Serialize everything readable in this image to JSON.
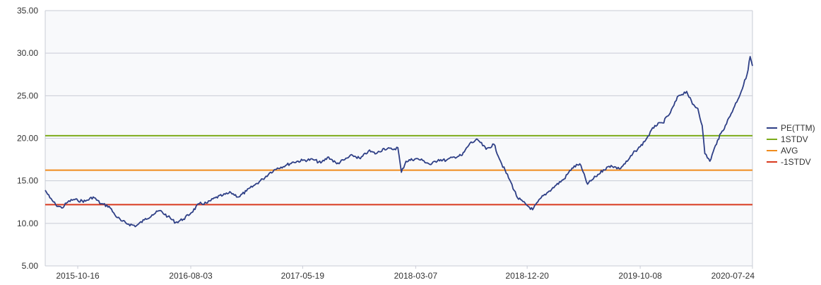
{
  "chart_data": {
    "type": "line",
    "x_tick_labels": [
      "2015-10-16",
      "2016-08-03",
      "2017-05-19",
      "2018-03-07",
      "2018-12-20",
      "2019-10-08",
      "2020-07-24"
    ],
    "x_range": [
      "2015-07-24",
      "2020-07-24"
    ],
    "y_tick_labels": [
      "5.00",
      "10.00",
      "15.00",
      "20.00",
      "25.00",
      "30.00",
      "35.00"
    ],
    "ylim": [
      5,
      35
    ],
    "grid": "horizontal",
    "legend_position": "right",
    "title": "",
    "xlabel": "",
    "ylabel": "",
    "series": [
      {
        "name": "PE(TTM)",
        "color": "#2e3f86",
        "x": [
          "2015-07-24",
          "2015-08-05",
          "2015-08-20",
          "2015-09-05",
          "2015-09-20",
          "2015-10-05",
          "2015-10-16",
          "2015-11-05",
          "2015-11-25",
          "2015-12-15",
          "2016-01-05",
          "2016-01-20",
          "2016-02-05",
          "2016-02-25",
          "2016-03-15",
          "2016-04-05",
          "2016-04-25",
          "2016-05-15",
          "2016-06-05",
          "2016-06-25",
          "2016-07-15",
          "2016-08-03",
          "2016-08-25",
          "2016-09-15",
          "2016-10-05",
          "2016-10-25",
          "2016-11-15",
          "2016-12-05",
          "2016-12-25",
          "2017-01-15",
          "2017-02-05",
          "2017-02-25",
          "2017-03-15",
          "2017-04-05",
          "2017-04-25",
          "2017-05-19",
          "2017-06-15",
          "2017-07-05",
          "2017-07-25",
          "2017-08-15",
          "2017-09-05",
          "2017-09-25",
          "2017-10-15",
          "2017-11-05",
          "2017-11-25",
          "2017-12-15",
          "2018-01-05",
          "2018-01-20",
          "2018-01-29",
          "2018-02-10",
          "2018-03-07",
          "2018-03-25",
          "2018-04-15",
          "2018-05-05",
          "2018-05-25",
          "2018-06-15",
          "2018-07-05",
          "2018-07-25",
          "2018-08-15",
          "2018-09-05",
          "2018-09-25",
          "2018-10-15",
          "2018-11-05",
          "2018-11-25",
          "2018-12-20",
          "2019-01-03",
          "2019-01-25",
          "2019-02-15",
          "2019-03-05",
          "2019-03-25",
          "2019-04-15",
          "2019-05-05",
          "2019-05-25",
          "2019-06-15",
          "2019-07-05",
          "2019-07-25",
          "2019-08-15",
          "2019-09-05",
          "2019-09-25",
          "2019-10-08",
          "2019-10-25",
          "2019-11-15",
          "2019-12-05",
          "2019-12-25",
          "2020-01-15",
          "2020-02-05",
          "2020-02-20",
          "2020-03-05",
          "2020-03-16",
          "2020-03-23",
          "2020-04-05",
          "2020-04-25",
          "2020-05-15",
          "2020-06-05",
          "2020-06-25",
          "2020-07-10",
          "2020-07-18",
          "2020-07-24"
        ],
        "values": [
          13.9,
          13.0,
          12.2,
          11.8,
          12.5,
          12.8,
          12.7,
          12.6,
          13.1,
          12.3,
          12.0,
          11.0,
          10.3,
          9.9,
          9.7,
          10.4,
          11.0,
          11.5,
          10.8,
          10.1,
          10.5,
          11.2,
          12.3,
          12.4,
          13.0,
          13.3,
          13.6,
          13.1,
          13.8,
          14.5,
          15.2,
          16.0,
          16.5,
          16.8,
          17.2,
          17.4,
          17.5,
          17.1,
          17.8,
          17.0,
          17.5,
          18.0,
          17.6,
          18.5,
          18.2,
          18.8,
          18.7,
          18.9,
          16.0,
          17.3,
          17.6,
          17.4,
          16.9,
          17.5,
          17.4,
          17.8,
          18.0,
          19.4,
          19.8,
          18.7,
          19.3,
          17.0,
          15.1,
          13.0,
          12.1,
          11.6,
          13.0,
          13.8,
          14.5,
          15.2,
          16.5,
          17.0,
          14.6,
          15.5,
          16.3,
          16.8,
          16.4,
          17.3,
          18.5,
          19.0,
          20.0,
          21.5,
          21.8,
          23.0,
          25.0,
          25.5,
          24.0,
          23.5,
          21.5,
          18.2,
          17.3,
          19.8,
          21.5,
          23.5,
          25.5,
          27.5,
          29.6,
          28.5
        ]
      },
      {
        "name": "1STDV",
        "color": "#7cab1a",
        "value": 20.3
      },
      {
        "name": "AVG",
        "color": "#f08c1e",
        "value": 16.25
      },
      {
        "name": "-1STDV",
        "color": "#d93a1f",
        "value": 12.2
      }
    ]
  }
}
